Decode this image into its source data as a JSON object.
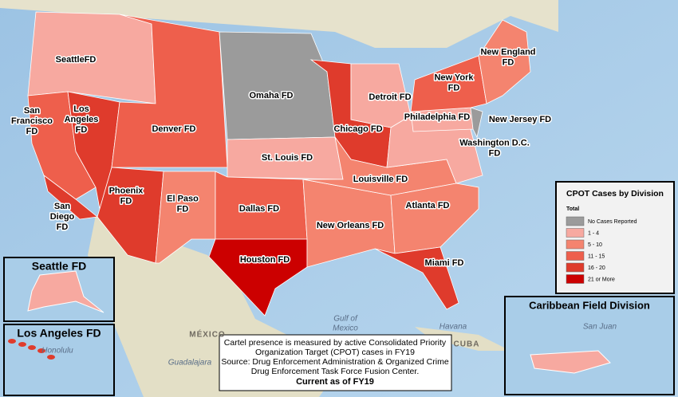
{
  "legend": {
    "title": "CPOT Cases by Division",
    "subtitle": "Total",
    "items": [
      {
        "label": "No Cases Reported",
        "color": "#9b9b9b"
      },
      {
        "label": "1 - 4",
        "color": "#f7a9a0"
      },
      {
        "label": "5 - 10",
        "color": "#f4846f"
      },
      {
        "label": "11 - 15",
        "color": "#ee5f4c"
      },
      {
        "label": "16 - 20",
        "color": "#df3b2c"
      },
      {
        "label": "21 or More",
        "color": "#cc0000"
      }
    ]
  },
  "divisions": [
    {
      "label": [
        "SeattleFD"
      ],
      "level": 1
    },
    {
      "label": [
        "San",
        "Francisco",
        "FD"
      ],
      "level": 3
    },
    {
      "label": [
        "Los",
        "Angeles",
        "FD"
      ],
      "level": 4
    },
    {
      "label": [
        "Denver FD"
      ],
      "level": 3
    },
    {
      "label": [
        "Phoenix",
        "FD"
      ],
      "level": 4
    },
    {
      "label": [
        "El Paso",
        "FD"
      ],
      "level": 2
    },
    {
      "label": [
        "Omaha FD"
      ],
      "level": 0
    },
    {
      "label": [
        "St. Louis FD"
      ],
      "level": 1
    },
    {
      "label": [
        "Dallas FD"
      ],
      "level": 3
    },
    {
      "label": [
        "Houston FD"
      ],
      "level": 5
    },
    {
      "label": [
        "Chicago FD"
      ],
      "level": 4
    },
    {
      "label": [
        "Detroit FD"
      ],
      "level": 1
    },
    {
      "label": [
        "New Orleans FD"
      ],
      "level": 2
    },
    {
      "label": [
        "Louisville FD"
      ],
      "level": 2
    },
    {
      "label": [
        "Atlanta FD"
      ],
      "level": 2
    },
    {
      "label": [
        "Miami FD"
      ],
      "level": 4
    },
    {
      "label": [
        "Washington D.C.",
        "FD"
      ],
      "level": 1
    },
    {
      "label": [
        "Philadelphia FD"
      ],
      "level": 1
    },
    {
      "label": [
        "New Jersey FD"
      ],
      "level": 0
    },
    {
      "label": [
        "New York",
        "FD"
      ],
      "level": 3
    },
    {
      "label": [
        "New England",
        "FD"
      ],
      "level": 2
    },
    {
      "label": [
        "San",
        "Diego",
        "FD"
      ],
      "level": 4
    }
  ],
  "insets": [
    "Seattle FD",
    "Los Angeles FD",
    "Caribbean Field Division"
  ],
  "places": [
    [
      "Gulf of",
      "Mexico"
    ],
    [
      "Havana"
    ],
    [
      "MÉXICO"
    ],
    [
      "CUBA"
    ],
    [
      "Guadalajara"
    ],
    [
      "San Juan"
    ],
    [
      "Honolulu"
    ]
  ],
  "note": {
    "lines": [
      "Cartel presence is measured by active Consolidated Priority",
      "Organization Target (CPOT) cases in FY19",
      "Source: Drug Enforcement Administration & Organized Crime",
      "Drug Enforcement Task Force Fusion Center."
    ],
    "emphasis": "Current as of FY19"
  }
}
